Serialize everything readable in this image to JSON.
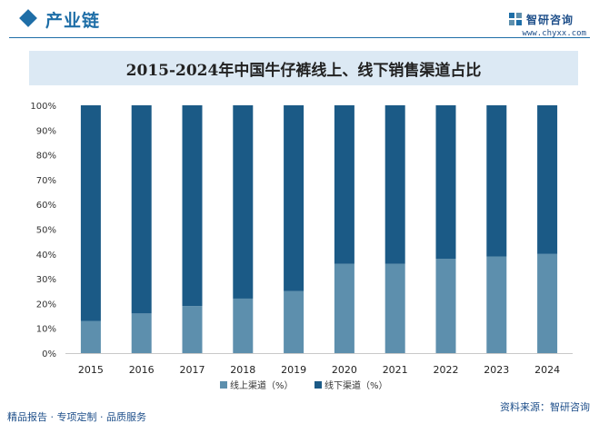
{
  "header": {
    "section_title": "产业链",
    "logo_text": "智研咨询",
    "logo_url": "www.chyxx.com",
    "logo_icon": "zhiyan-logo-icon"
  },
  "chart_data": {
    "type": "bar",
    "stacked": true,
    "normalized": true,
    "title": "2015-2024年中国牛仔裤线上、线下销售渠道占比",
    "xlabel": "",
    "ylabel": "",
    "categories": [
      "2015",
      "2016",
      "2017",
      "2018",
      "2019",
      "2020",
      "2021",
      "2022",
      "2023",
      "2024"
    ],
    "series": [
      {
        "name": "线上渠道（%）",
        "color": "#5d8fad",
        "values": [
          13,
          16,
          19,
          22,
          25,
          36,
          36,
          38,
          39,
          40
        ]
      },
      {
        "name": "线下渠道（%）",
        "color": "#1b5a86",
        "values": [
          87,
          84,
          81,
          78,
          75,
          64,
          64,
          62,
          61,
          60
        ]
      }
    ],
    "ylim": [
      0,
      100
    ],
    "yticks": [
      "0%",
      "10%",
      "20%",
      "30%",
      "40%",
      "50%",
      "60%",
      "70%",
      "80%",
      "90%",
      "100%"
    ],
    "grid": false,
    "legend": "bottom"
  },
  "footer": {
    "left": "精品报告 · 专项定制 · 品质服务",
    "source": "资料来源：智研咨询"
  }
}
